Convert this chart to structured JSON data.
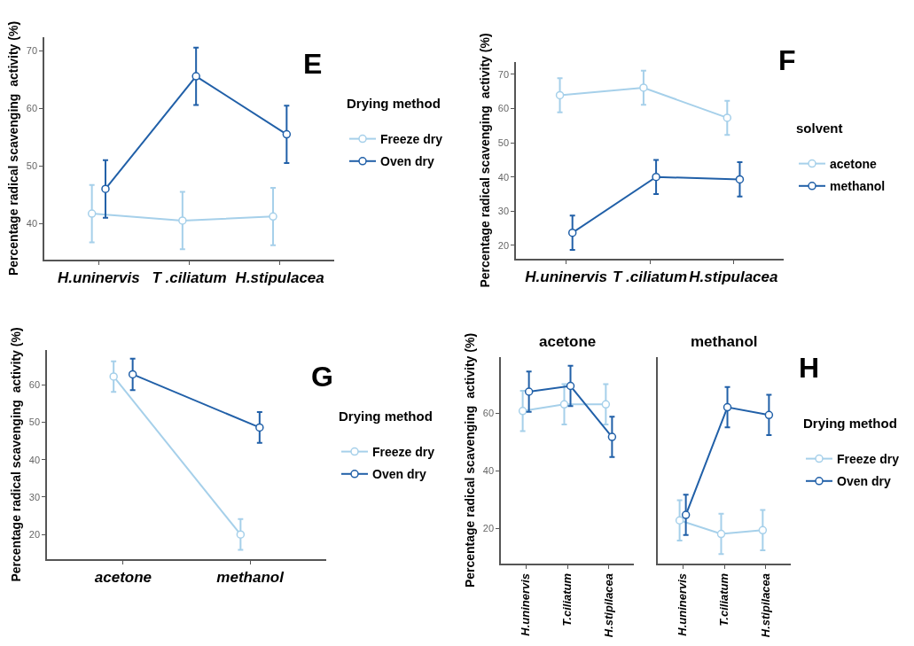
{
  "chart_data": [
    {
      "type": "line",
      "categories": [
        "H.uninervis",
        "T .ciliatum",
        "H.stipulacea"
      ],
      "ylabel": "Percentage radical scavenging  activity (%)",
      "ylim": [
        33.7,
        72.4
      ],
      "yticks": [
        40,
        50,
        60,
        70
      ],
      "legend": "right",
      "legend_title": "Drying method",
      "marker": "circle",
      "annotations": [
        "E"
      ],
      "series": [
        {
          "name": "Freeze dry",
          "color": "#a6d0ea",
          "values": [
            41.7,
            40.5,
            41.2
          ],
          "errors": [
            5,
            5,
            5
          ]
        },
        {
          "name": "Oven dry",
          "color": "#2160a8",
          "values": [
            46.0,
            65.6,
            55.5
          ],
          "errors": [
            5,
            5,
            5
          ]
        }
      ]
    },
    {
      "type": "line",
      "categories": [
        "H.uninervis",
        "T .ciliatum",
        "H.stipulacea"
      ],
      "ylabel": "Percentage radical scavenging  activity (%)",
      "ylim": [
        16.1,
        73.6
      ],
      "yticks": [
        20,
        30,
        40,
        50,
        60,
        70
      ],
      "legend": "right",
      "legend_title": "solvent",
      "marker": "circle",
      "annotations": [
        "F"
      ],
      "series": [
        {
          "name": "acetone",
          "color": "#a6d0ea",
          "values": [
            63.9,
            66.1,
            57.3
          ],
          "errors": [
            5,
            5,
            5
          ]
        },
        {
          "name": "methanol",
          "color": "#2160a8",
          "values": [
            23.7,
            40.0,
            39.3
          ],
          "errors": [
            5,
            5,
            5
          ]
        }
      ]
    },
    {
      "type": "line",
      "categories": [
        "acetone",
        "methanol"
      ],
      "ylabel": "Percentage radical scavenging  activity (%)",
      "ylim": [
        13.4,
        69.3
      ],
      "yticks": [
        20,
        30,
        40,
        50,
        60
      ],
      "legend": "right",
      "legend_title": "Drying method",
      "marker": "circle",
      "annotations": [
        "G"
      ],
      "series": [
        {
          "name": "Freeze dry",
          "color": "#a6d0ea",
          "values": [
            62.2,
            20.0
          ],
          "errors": [
            4.1,
            4.1
          ]
        },
        {
          "name": "Oven dry",
          "color": "#2160a8",
          "values": [
            62.8,
            48.6
          ],
          "errors": [
            4.2,
            4.1
          ]
        }
      ]
    },
    {
      "type": "line",
      "title": "acetone",
      "categories": [
        "H.uninervis",
        "T.ciliatum",
        "H.stipilacea"
      ],
      "ylabel": "Percentage radical scavenging  activity (%)",
      "ylim": [
        7.7,
        79.4
      ],
      "yticks": [
        20,
        40,
        60
      ],
      "marker": "circle",
      "series": [
        {
          "color": "#a6d0ea",
          "values": [
            60.7,
            63.0,
            63.0
          ],
          "errors": [
            7,
            7,
            7
          ]
        },
        {
          "color": "#2160a8",
          "values": [
            67.4,
            69.4,
            51.7
          ],
          "errors": [
            7,
            7,
            7
          ]
        }
      ]
    },
    {
      "type": "line",
      "title": "methanol",
      "categories": [
        "H.uninervis",
        "T.ciliatum",
        "H.stipilacea"
      ],
      "ylim": [
        7.7,
        79.4
      ],
      "tick_labels": "x",
      "legend": "right",
      "legend_title": "Drying method",
      "marker": "circle",
      "annotations": [
        "H"
      ],
      "series": [
        {
          "name": "Freeze dry",
          "color": "#a6d0ea",
          "values": [
            22.7,
            18.0,
            19.3
          ],
          "errors": [
            7,
            7,
            7
          ]
        },
        {
          "name": "Oven dry",
          "color": "#2160a8",
          "values": [
            24.6,
            62.0,
            59.3
          ],
          "errors": [
            7,
            7,
            7
          ]
        }
      ]
    }
  ]
}
